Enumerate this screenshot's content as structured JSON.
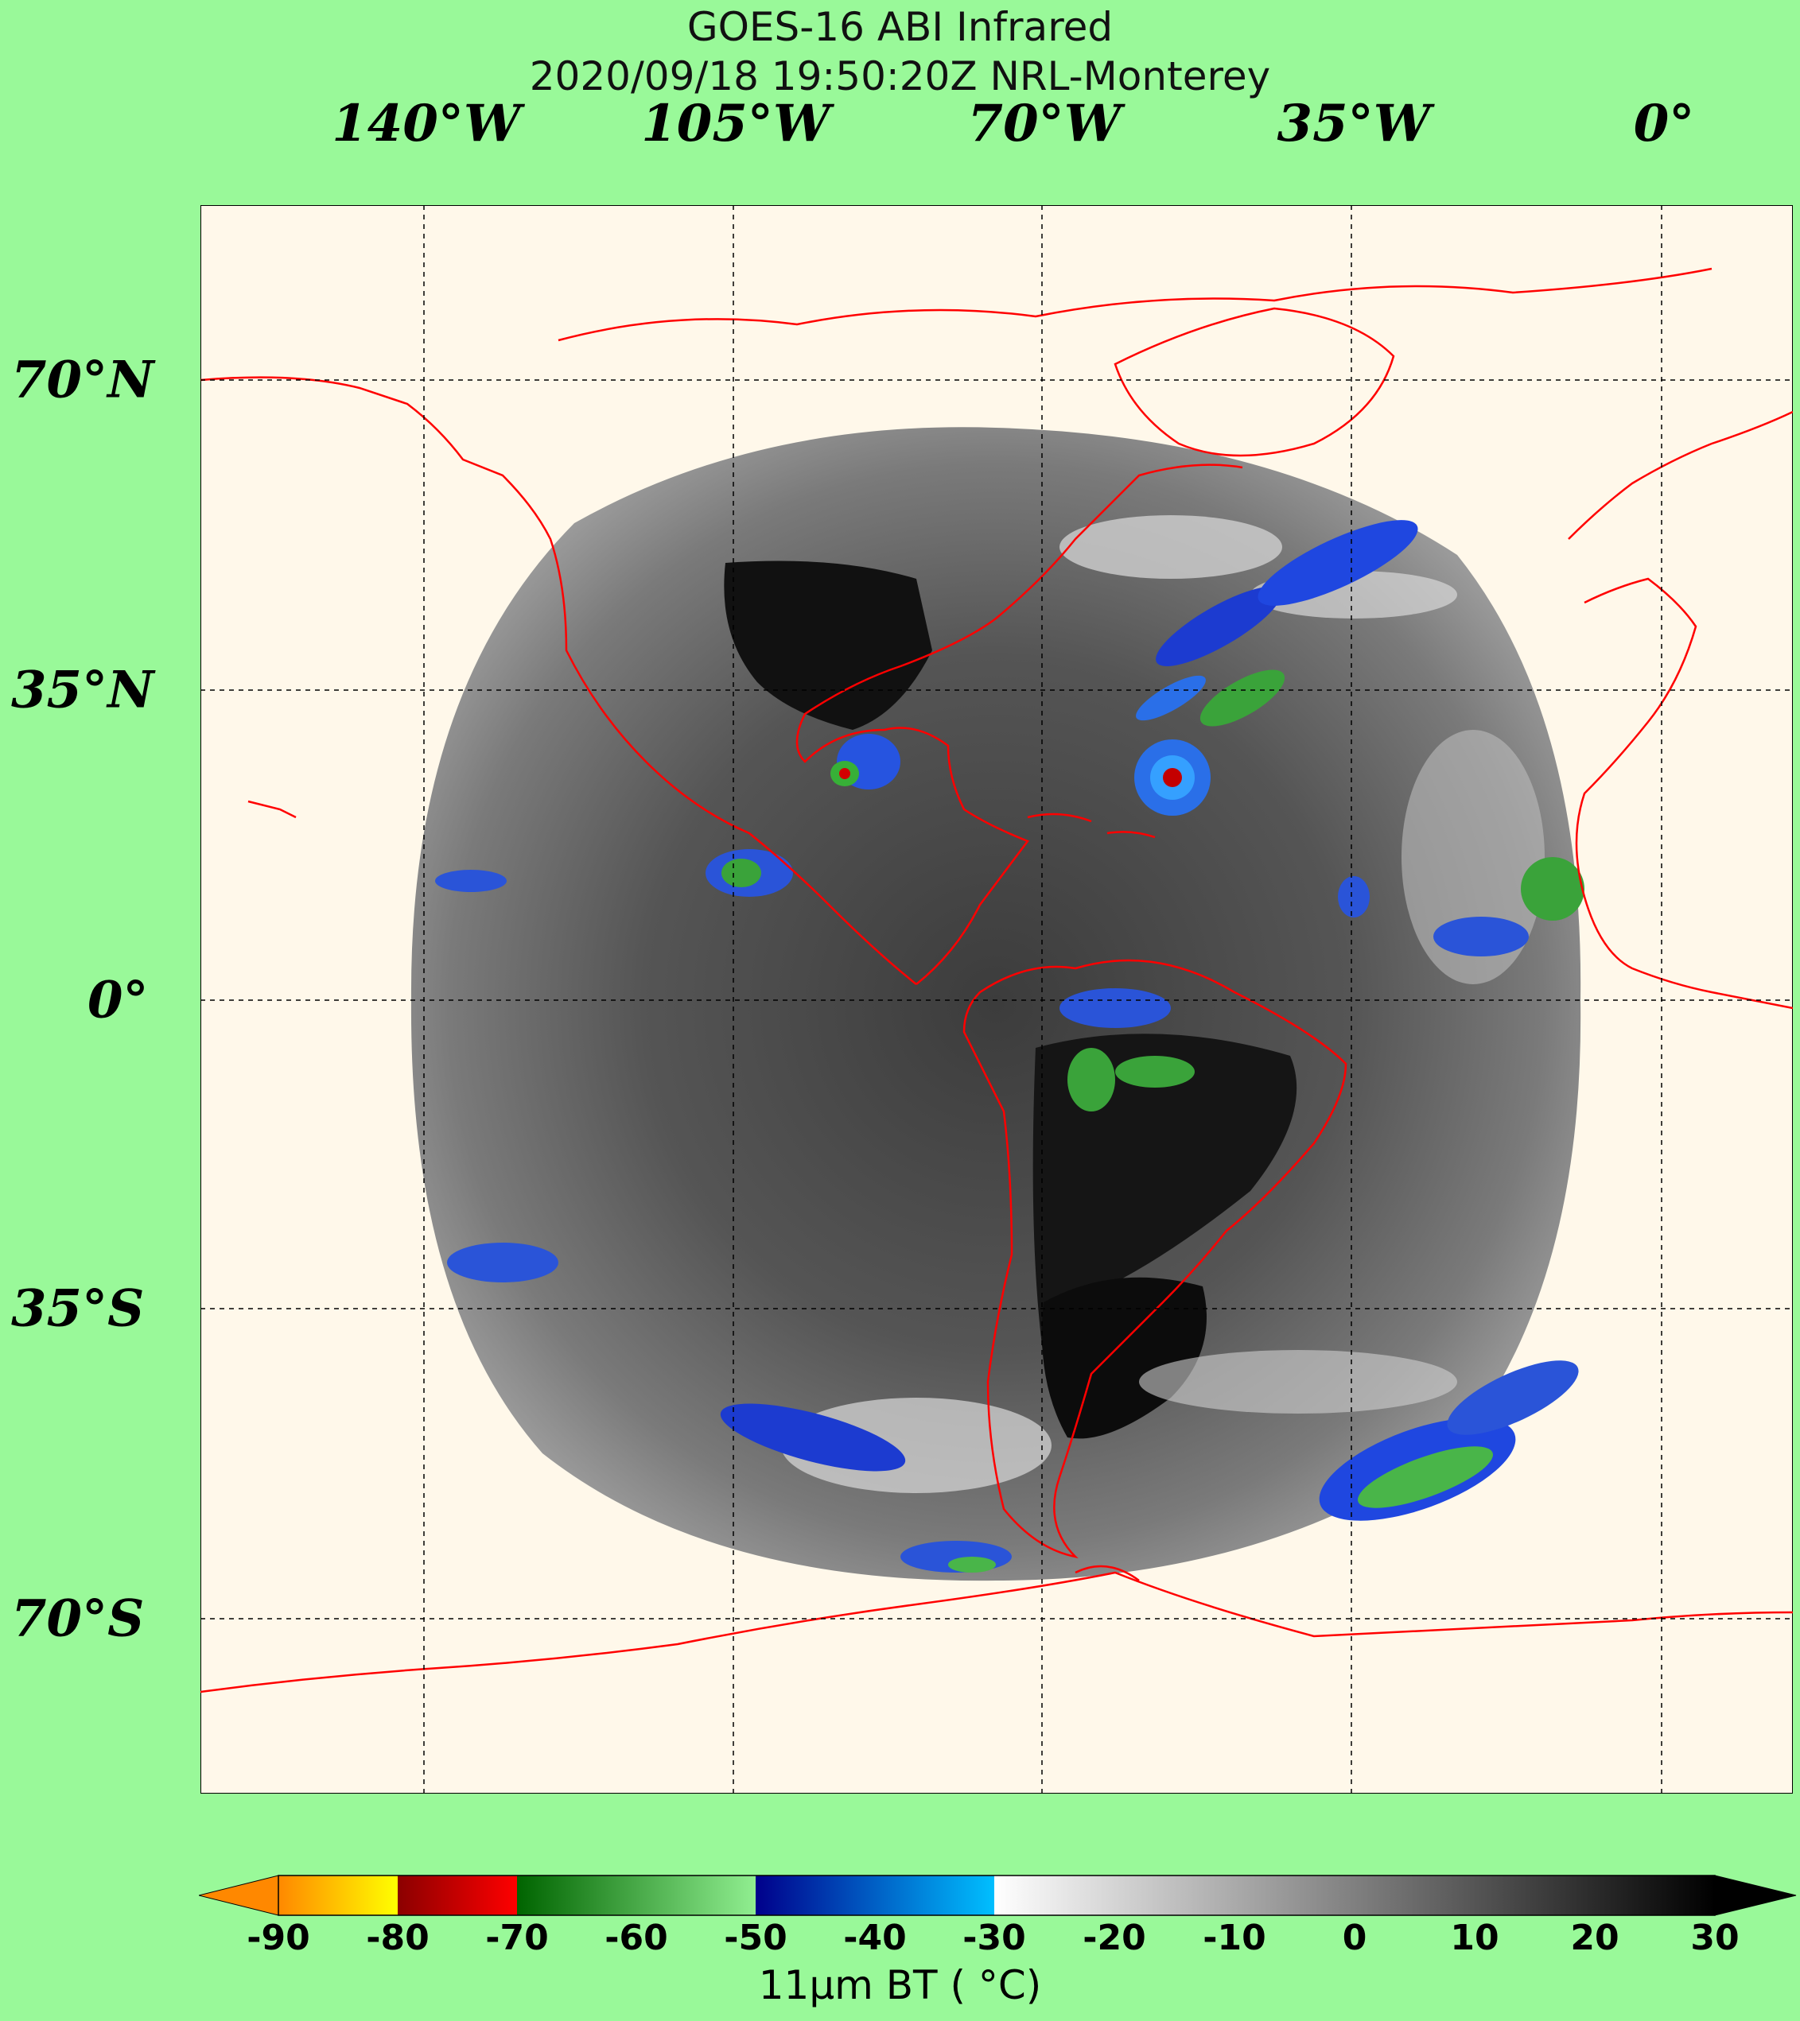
{
  "title": {
    "line1": "GOES-16 ABI Infrared",
    "line2": "2020/09/18 19:50:20Z NRL-Monterey"
  },
  "longitude_labels": [
    "140°W",
    "105°W",
    "70°W",
    "35°W",
    "0°"
  ],
  "latitude_labels": [
    "70°N",
    "35°N",
    "0°",
    "35°S",
    "70°S"
  ],
  "colorbar": {
    "label": "11μm BT ( °C)",
    "ticks": [
      "-90",
      "-80",
      "-70",
      "-60",
      "-50",
      "-40",
      "-30",
      "-20",
      "-10",
      "0",
      "10",
      "20",
      "30"
    ],
    "segments": [
      {
        "from": -90,
        "to": -80,
        "start": "#ff8800",
        "end": "#ffff00"
      },
      {
        "from": -80,
        "to": -70,
        "start": "#8b0000",
        "end": "#ff0000"
      },
      {
        "from": -70,
        "to": -50,
        "start": "#006400",
        "end": "#90ee90"
      },
      {
        "from": -50,
        "to": -30,
        "start": "#00008b",
        "end": "#00bfff"
      },
      {
        "from": -30,
        "to": 30,
        "start": "#ffffff",
        "end": "#000000"
      }
    ]
  },
  "colors": {
    "background": "#99f999",
    "map_background": "#fff8ea",
    "coastline": "#ff0000",
    "grid": "#000000"
  }
}
